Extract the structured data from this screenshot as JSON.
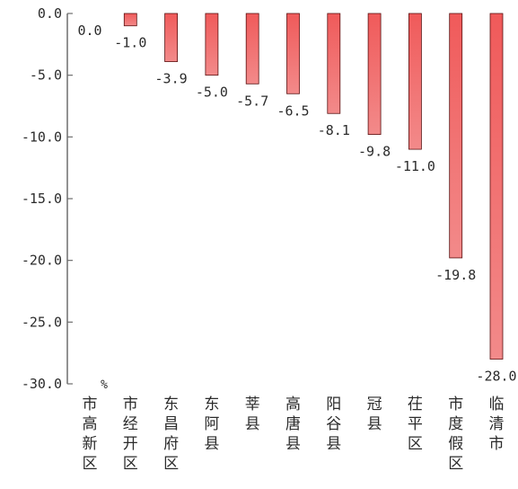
{
  "chart_data": {
    "type": "bar",
    "title": "",
    "xlabel": "",
    "ylabel": "",
    "unit": "%",
    "categories": [
      "市高新区",
      "市经开区",
      "东昌府区",
      "东阿县",
      "莘县",
      "高唐县",
      "阳谷县",
      "冠县",
      "茌平区",
      "市度假区",
      "临清市"
    ],
    "values": [
      0.0,
      -1.0,
      -3.9,
      -5.0,
      -5.7,
      -6.5,
      -8.1,
      -9.8,
      -11.0,
      -19.8,
      -28.0
    ],
    "value_labels": [
      "0.0",
      "-1.0",
      "-3.9",
      "-5.0",
      "-5.7",
      "-6.5",
      "-8.1",
      "-9.8",
      "-11.0",
      "-19.8",
      "-28.0"
    ],
    "ylim": [
      -30.0,
      0.0
    ],
    "yticks": [
      0.0,
      -5.0,
      -10.0,
      -15.0,
      -20.0,
      -25.0,
      -30.0
    ],
    "ytick_labels": [
      "0.0",
      "-5.0",
      "-10.0",
      "-15.0",
      "-20.0",
      "-25.0",
      "-30.0"
    ],
    "grid": false,
    "legend": "none",
    "colors": {
      "bar_top": "#f05a5a",
      "bar_bottom": "#f28a8a",
      "bar_edge": "#5a1010",
      "axis": "#6e6e6e",
      "text": "#2b2b2b"
    }
  }
}
